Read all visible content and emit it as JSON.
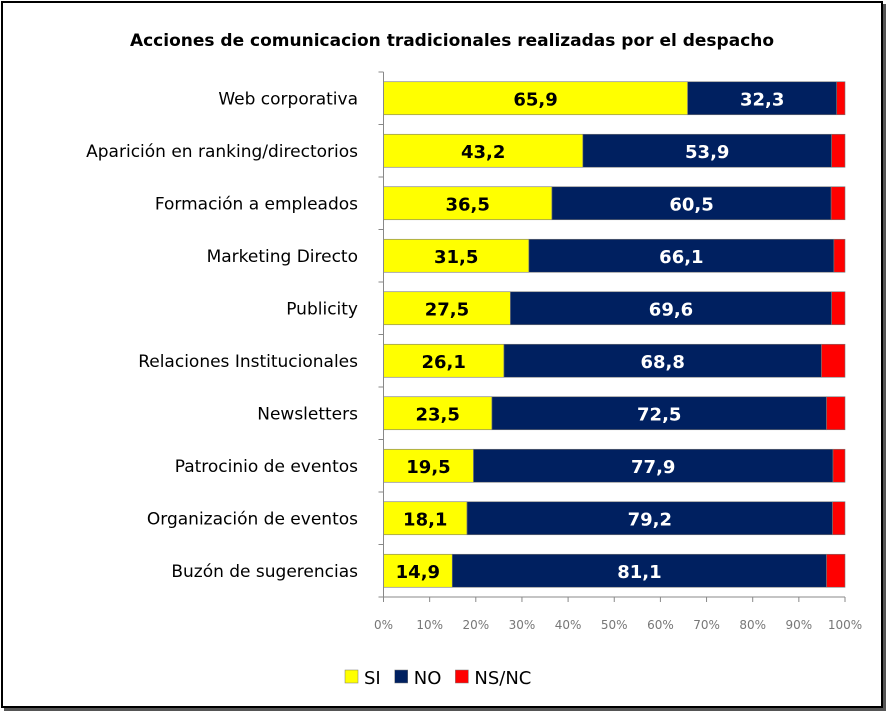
{
  "chart_data": {
    "type": "bar",
    "orientation": "horizontal",
    "stacked": "percent",
    "title": "Acciones de comunicacion tradicionales realizadas por el despacho",
    "xlabel": "",
    "ylabel": "",
    "xlim": [
      0,
      100
    ],
    "x_ticks": [
      "0%",
      "10%",
      "20%",
      "30%",
      "40%",
      "50%",
      "60%",
      "70%",
      "80%",
      "90%",
      "100%"
    ],
    "grid": false,
    "legend_position": "bottom",
    "categories": [
      "Web corporativa",
      "Aparición en ranking/directorios",
      "Formación a empleados",
      "Marketing Directo",
      "Publicity",
      "Relaciones Institucionales",
      "Newsletters",
      "Patrocinio de eventos",
      "Organización de eventos",
      "Buzón de sugerencias"
    ],
    "series": [
      {
        "name": "SI",
        "color": "#FFFF00",
        "label_color": "#000000",
        "show_labels": true,
        "values": [
          65.9,
          43.2,
          36.5,
          31.5,
          27.5,
          26.1,
          23.5,
          19.5,
          18.1,
          14.9
        ],
        "labels": [
          "65,9",
          "43,2",
          "36,5",
          "31,5",
          "27,5",
          "26,1",
          "23,5",
          "19,5",
          "18,1",
          "14,9"
        ]
      },
      {
        "name": "NO",
        "color": "#002060",
        "label_color": "#FFFFFF",
        "show_labels": true,
        "values": [
          32.3,
          53.9,
          60.5,
          66.1,
          69.6,
          68.8,
          72.5,
          77.9,
          79.2,
          81.1
        ],
        "labels": [
          "32,3",
          "53,9",
          "60,5",
          "66,1",
          "69,6",
          "68,8",
          "72,5",
          "77,9",
          "79,2",
          "81,1"
        ]
      },
      {
        "name": "NS/NC",
        "color": "#FF0000",
        "show_labels": false,
        "values": [
          1.8,
          2.9,
          3.0,
          2.4,
          2.9,
          5.1,
          4.0,
          2.6,
          2.7,
          4.0
        ]
      }
    ]
  }
}
